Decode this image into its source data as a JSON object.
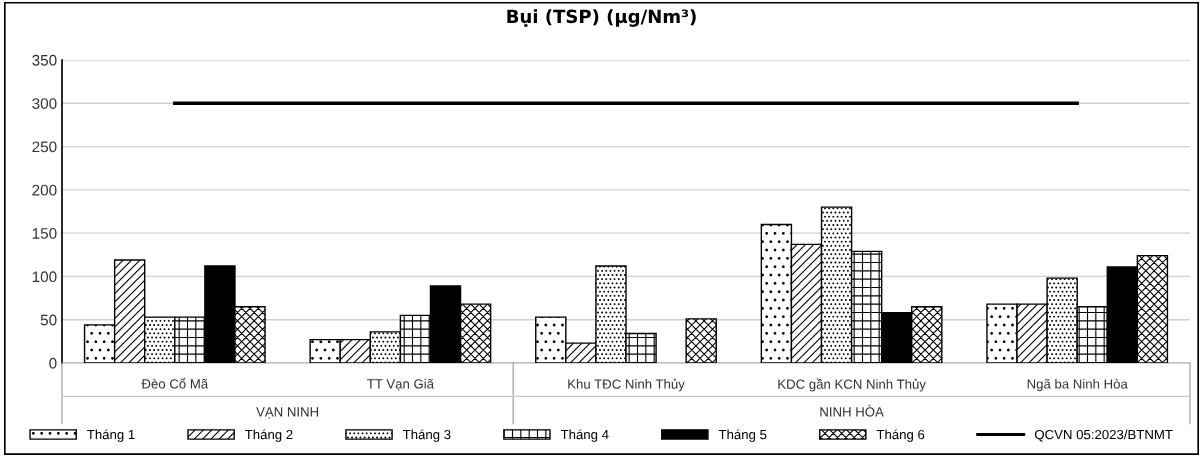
{
  "chart_data": {
    "type": "bar",
    "title": "Bụi (TSP) (µg/Nm³)",
    "categories": [
      "Đèo Cổ Mã",
      "TT Vạn Giã",
      "Khu TĐC Ninh Thủy",
      "KDC gần KCN Ninh Thủy",
      "Ngã ba Ninh Hòa"
    ],
    "series": [
      {
        "name": "Tháng 1",
        "color": "#000000",
        "values": [
          44,
          27,
          53,
          160,
          68
        ]
      },
      {
        "name": "Tháng 2",
        "color": "#000000",
        "values": [
          119,
          27,
          23,
          137,
          68
        ]
      },
      {
        "name": "Tháng 3",
        "color": "#000000",
        "values": [
          53,
          36,
          112,
          180,
          98
        ]
      },
      {
        "name": "Tháng 4",
        "color": "#000000",
        "values": [
          53,
          55,
          34,
          129,
          65
        ]
      },
      {
        "name": "Tháng 5",
        "color": "#000000",
        "values": [
          112,
          89,
          null,
          58,
          111
        ]
      },
      {
        "name": "Tháng 6",
        "color": "#000000",
        "values": [
          65,
          68,
          51,
          65,
          124
        ]
      },
      {
        "name": "QCVN 05:2023/BTNMT",
        "type": "line",
        "color": "#000000",
        "line_style": "solid",
        "values": [
          300,
          300,
          300,
          300,
          300
        ]
      }
    ],
    "annotations": [
      "VẠN NINH",
      "NINH HÒA"
    ],
    "ylim": [
      0,
      350
    ],
    "yticks": [
      0,
      50,
      100,
      150,
      200,
      250,
      300,
      350
    ],
    "grid": "y",
    "legend": "bottom"
  }
}
